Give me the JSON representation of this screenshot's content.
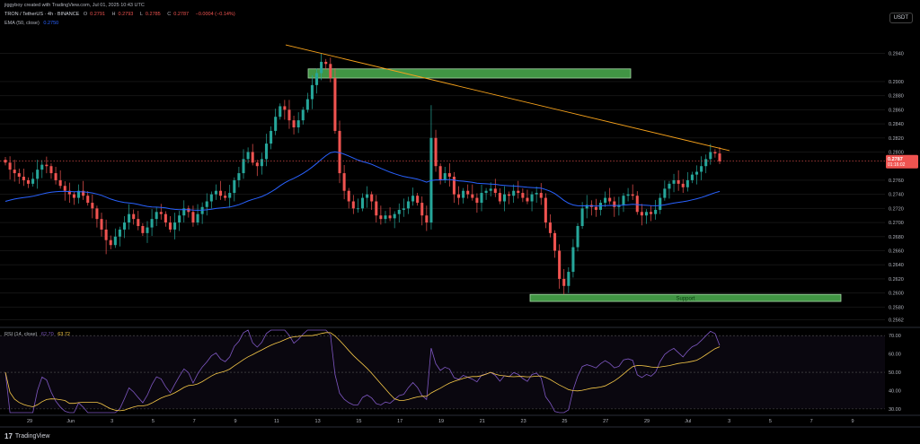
{
  "header": {
    "attribution": "jiggyboy created with TradingView.com, Jul 01, 2025 10:43 UTC",
    "symbol": "TRON / TetherUS · 4h · BINANCE",
    "ohlc": {
      "o_label": "O",
      "o": "0.2791",
      "h_label": "H",
      "h": "0.2793",
      "l_label": "L",
      "l": "0.2785",
      "c_label": "C",
      "c": "0.2787",
      "chg": "−0.0004 (−0.14%)"
    },
    "ema_label": "EMA (50, close)",
    "ema_value": "0.2750",
    "currency_button": "USDT"
  },
  "price_axis": {
    "ticks": [
      "0.2940",
      "0.2900",
      "0.2880",
      "0.2860",
      "0.2840",
      "0.2820",
      "0.2800",
      "0.2760",
      "0.2740",
      "0.2720",
      "0.2700",
      "0.2680",
      "0.2660",
      "0.2640",
      "0.2620",
      "0.2600",
      "0.2580",
      "0.2562"
    ],
    "last_price": "0.2787",
    "countdown": "01:16:02"
  },
  "annotations": {
    "support_label": "Support"
  },
  "rsi": {
    "label": "RSI (14, close)",
    "value1": "62.70",
    "value2": "63.72",
    "ticks": [
      "70.00",
      "60.00",
      "50.00",
      "40.00",
      "30.00"
    ]
  },
  "time_axis": {
    "ticks": [
      "29",
      "Jun",
      "3",
      "5",
      "7",
      "9",
      "11",
      "13",
      "15",
      "17",
      "19",
      "21",
      "23",
      "25",
      "27",
      "29",
      "Jul",
      "3",
      "5",
      "7",
      "9"
    ]
  },
  "footer": {
    "brand": "TradingView"
  },
  "colors": {
    "up": "#26a69a",
    "down": "#ef5350",
    "ema": "#2962ff",
    "trendline": "#f7a21b",
    "zone": "#4caf50",
    "rsi": "#7e57c2",
    "rsi_ma": "#f7c948"
  },
  "chart_data": {
    "type": "candlestick",
    "symbol": "TRON / TetherUS",
    "interval": "4h",
    "ylim": [
      0.2555,
      0.2975
    ],
    "closes": [
      0.2785,
      0.2775,
      0.277,
      0.2765,
      0.276,
      0.2755,
      0.2762,
      0.2775,
      0.2782,
      0.278,
      0.277,
      0.276,
      0.2752,
      0.2745,
      0.274,
      0.2735,
      0.2745,
      0.2738,
      0.2728,
      0.272,
      0.2705,
      0.269,
      0.2675,
      0.2668,
      0.268,
      0.269,
      0.27,
      0.2712,
      0.2705,
      0.2695,
      0.2685,
      0.2693,
      0.2705,
      0.2715,
      0.2712,
      0.27,
      0.269,
      0.27,
      0.271,
      0.272,
      0.2715,
      0.27,
      0.2712,
      0.2722,
      0.273,
      0.274,
      0.2745,
      0.2738,
      0.2735,
      0.2742,
      0.276,
      0.277,
      0.279,
      0.28,
      0.2785,
      0.278,
      0.279,
      0.2812,
      0.283,
      0.285,
      0.2865,
      0.286,
      0.2845,
      0.2835,
      0.2845,
      0.286,
      0.2875,
      0.2895,
      0.2912,
      0.2928,
      0.2925,
      0.2905,
      0.283,
      0.277,
      0.2745,
      0.273,
      0.272,
      0.272,
      0.2735,
      0.274,
      0.273,
      0.271,
      0.2705,
      0.271,
      0.2706,
      0.2712,
      0.2718,
      0.272,
      0.273,
      0.2738,
      0.2728,
      0.271,
      0.27,
      0.282,
      0.278,
      0.276,
      0.277,
      0.2765,
      0.274,
      0.2735,
      0.2745,
      0.274,
      0.2735,
      0.2728,
      0.2742,
      0.2745,
      0.2748,
      0.2742,
      0.273,
      0.274,
      0.2738,
      0.2745,
      0.2742,
      0.2735,
      0.273,
      0.274,
      0.2742,
      0.2735,
      0.27,
      0.2685,
      0.266,
      0.262,
      0.261,
      0.263,
      0.2665,
      0.2695,
      0.272,
      0.2725,
      0.2722,
      0.2718,
      0.2728,
      0.2735,
      0.273,
      0.2722,
      0.2725,
      0.2738,
      0.274,
      0.2738,
      0.2715,
      0.271,
      0.2715,
      0.2712,
      0.2718,
      0.2735,
      0.2748,
      0.2755,
      0.276,
      0.2755,
      0.275,
      0.276,
      0.2768,
      0.2772,
      0.278,
      0.279,
      0.28,
      0.2798,
      0.2787
    ],
    "ema50_start": 0.273,
    "trendline": [
      {
        "x": "Jun 10",
        "y": 0.2952
      },
      {
        "x": "Jul 01",
        "y": 0.2802
      }
    ],
    "resistance_zone": {
      "from": "Jun 10",
      "to": "Jun 27",
      "y_low": 0.2905,
      "y_high": 0.2918
    },
    "support_zone": {
      "label": "Support",
      "from": "Jun 22",
      "to": "Jul 08",
      "y_low": 0.2588,
      "y_high": 0.2598
    },
    "rsi": {
      "period": 14,
      "last": 62.7,
      "ma_last": 63.72,
      "levels": [
        70,
        50,
        30
      ],
      "ylim": [
        27,
        74
      ]
    }
  }
}
